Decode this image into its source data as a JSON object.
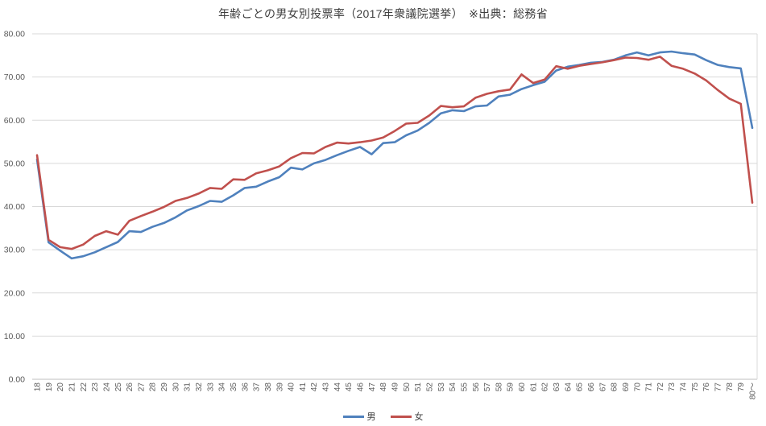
{
  "chart_data": {
    "type": "line",
    "title": "年齢ごとの男女別投票率（2017年衆議院選挙）　※出典：総務省",
    "xlabel": "",
    "ylabel": "",
    "ylim": [
      0,
      80
    ],
    "y_tick_step": 10,
    "y_tick_labels": [
      "0.00",
      "10.00",
      "20.00",
      "30.00",
      "40.00",
      "50.00",
      "60.00",
      "70.00",
      "80.00"
    ],
    "grid": "horizontal",
    "legend_position": "bottom",
    "categories": [
      "18",
      "19",
      "20",
      "21",
      "22",
      "23",
      "24",
      "25",
      "26",
      "27",
      "28",
      "29",
      "30",
      "31",
      "32",
      "33",
      "34",
      "35",
      "36",
      "37",
      "38",
      "39",
      "40",
      "41",
      "42",
      "43",
      "44",
      "45",
      "46",
      "47",
      "48",
      "49",
      "50",
      "51",
      "52",
      "53",
      "54",
      "55",
      "56",
      "57",
      "58",
      "59",
      "60",
      "61",
      "62",
      "63",
      "64",
      "65",
      "66",
      "67",
      "68",
      "69",
      "70",
      "71",
      "72",
      "73",
      "74",
      "75",
      "76",
      "77",
      "78",
      "79",
      "80～"
    ],
    "series": [
      {
        "name": "男",
        "color": "#4F81BD",
        "values": [
          50.9,
          31.7,
          29.8,
          28.0,
          28.5,
          29.4,
          30.6,
          31.8,
          34.3,
          34.1,
          35.3,
          36.2,
          37.5,
          39.1,
          40.1,
          41.3,
          41.1,
          42.6,
          44.3,
          44.6,
          45.8,
          46.8,
          49.0,
          48.6,
          50.0,
          50.8,
          51.9,
          52.9,
          53.8,
          52.1,
          54.7,
          54.9,
          56.5,
          57.6,
          59.4,
          61.6,
          62.3,
          62.1,
          63.2,
          63.4,
          65.5,
          65.9,
          67.2,
          68.1,
          68.9,
          71.5,
          72.4,
          72.8,
          73.3,
          73.5,
          74.0,
          75.0,
          75.7,
          75.0,
          75.7,
          75.9,
          75.5,
          75.2,
          73.9,
          72.8,
          72.3,
          72.0,
          58.2
        ]
      },
      {
        "name": "女",
        "color": "#C0504D",
        "values": [
          51.9,
          32.3,
          30.6,
          30.2,
          31.2,
          33.2,
          34.3,
          33.5,
          36.7,
          37.8,
          38.8,
          39.9,
          41.3,
          42.0,
          43.0,
          44.3,
          44.1,
          46.3,
          46.2,
          47.7,
          48.4,
          49.3,
          51.2,
          52.4,
          52.3,
          53.8,
          54.8,
          54.6,
          54.9,
          55.3,
          56.0,
          57.5,
          59.2,
          59.4,
          61.1,
          63.3,
          63.0,
          63.2,
          65.2,
          66.1,
          66.7,
          67.1,
          70.6,
          68.6,
          69.4,
          72.5,
          71.9,
          72.6,
          73.0,
          73.4,
          73.9,
          74.5,
          74.4,
          74.0,
          74.7,
          72.6,
          71.9,
          70.8,
          69.2,
          67.0,
          65.0,
          63.8,
          40.9
        ]
      }
    ]
  },
  "colors": {
    "gridline": "#D9D9D9",
    "axis_line": "#BFBFBF",
    "right_border": "#D9D9D9",
    "tick_text": "#595959",
    "title_text": "#3F3F3F"
  }
}
